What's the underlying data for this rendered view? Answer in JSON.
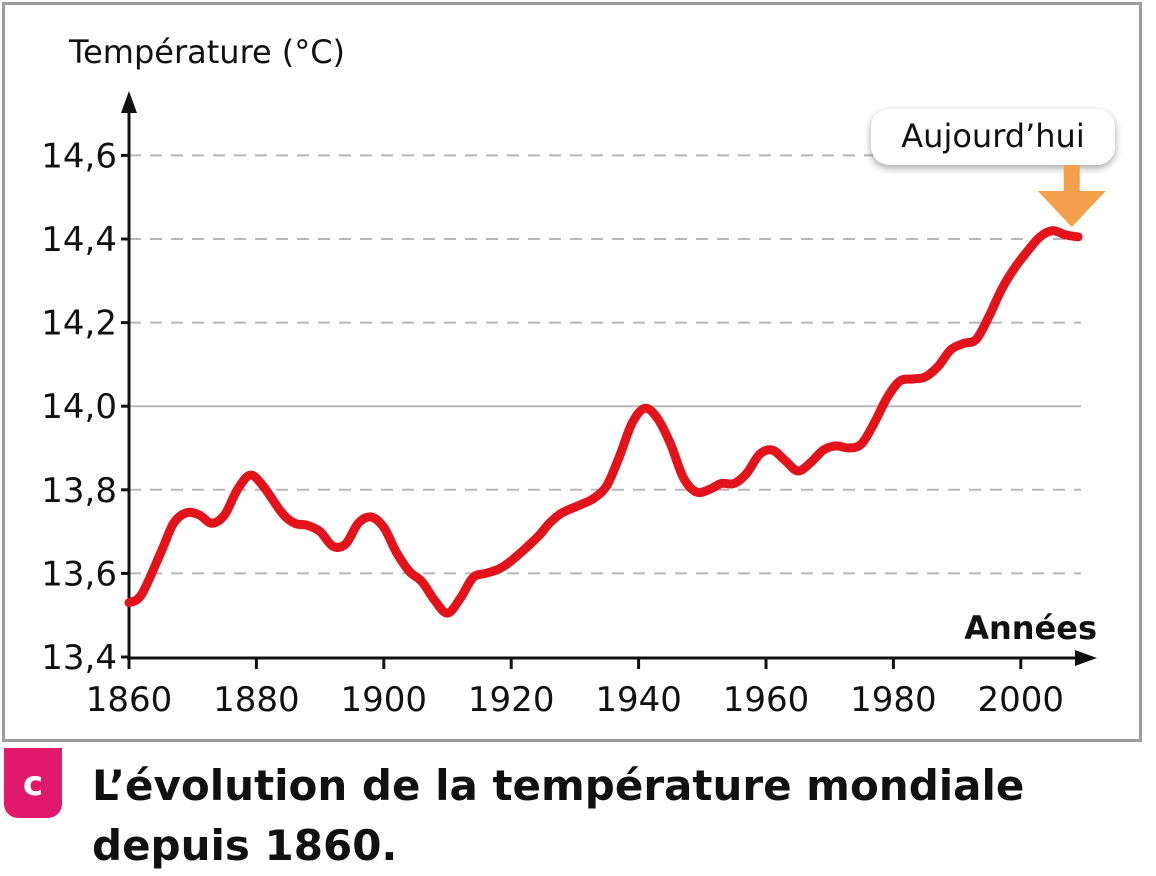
{
  "colors": {
    "line": "#e2131b",
    "arrow": "#f4a04a",
    "grid": "#b8b8b8",
    "axis": "#111111",
    "frame": "#9a9a9a",
    "badge": "#e0196d"
  },
  "caption": {
    "badge": "c",
    "text": "L’évolution de la température mondiale depuis 1860."
  },
  "chart_data": {
    "type": "line",
    "title": "",
    "ylabel_main": "Température",
    "ylabel_unit": "(°C)",
    "xlabel": "Années",
    "xlim": [
      1860,
      2015
    ],
    "ylim": [
      13.4,
      14.75
    ],
    "x_ticks": [
      1860,
      1880,
      1900,
      1920,
      1940,
      1960,
      1980,
      2000
    ],
    "x_tick_labels": [
      "1860",
      "1880",
      "1900",
      "1920",
      "1940",
      "1960",
      "1980",
      "2000"
    ],
    "y_ticks": [
      13.4,
      13.6,
      13.8,
      14.0,
      14.2,
      14.4,
      14.6
    ],
    "y_tick_labels": [
      "13,4",
      "13,6",
      "13,8",
      "14,0",
      "14,2",
      "14,4",
      "14,6"
    ],
    "solid_gridlines": [
      14.0
    ],
    "dashed_gridlines": [
      13.6,
      13.8,
      14.2,
      14.4,
      14.6
    ],
    "annotation": {
      "text": "Aujourd’hui",
      "x": 2008
    },
    "series": [
      {
        "x": [
          1860,
          1862,
          1865,
          1867,
          1869,
          1871,
          1873,
          1875,
          1877,
          1879,
          1881,
          1884,
          1886,
          1888,
          1890,
          1892,
          1894,
          1896,
          1898,
          1900,
          1902,
          1904,
          1906,
          1908,
          1910,
          1912,
          1914,
          1916,
          1918,
          1920,
          1924,
          1926,
          1928,
          1931,
          1933,
          1935,
          1937,
          1939,
          1941,
          1943,
          1945,
          1947,
          1949,
          1951,
          1953,
          1955,
          1957,
          1959,
          1961,
          1963,
          1965,
          1967,
          1969,
          1971,
          1973,
          1975,
          1977,
          1979,
          1981,
          1983,
          1985,
          1987,
          1989,
          1991,
          1993,
          1995,
          1997,
          1999,
          2001,
          2003,
          2005,
          2007,
          2009
        ],
        "y": [
          13.53,
          13.55,
          13.65,
          13.72,
          13.745,
          13.74,
          13.72,
          13.74,
          13.8,
          13.835,
          13.81,
          13.745,
          13.72,
          13.715,
          13.7,
          13.665,
          13.67,
          13.72,
          13.735,
          13.71,
          13.65,
          13.605,
          13.58,
          13.535,
          13.505,
          13.54,
          13.59,
          13.6,
          13.61,
          13.63,
          13.685,
          13.72,
          13.745,
          13.765,
          13.78,
          13.81,
          13.88,
          13.96,
          13.995,
          13.97,
          13.91,
          13.83,
          13.795,
          13.8,
          13.815,
          13.815,
          13.84,
          13.885,
          13.895,
          13.87,
          13.845,
          13.865,
          13.895,
          13.905,
          13.9,
          13.91,
          13.96,
          14.02,
          14.06,
          14.065,
          14.07,
          14.095,
          14.135,
          14.15,
          14.16,
          14.215,
          14.28,
          14.33,
          14.37,
          14.405,
          14.42,
          14.41,
          14.405
        ]
      }
    ]
  }
}
